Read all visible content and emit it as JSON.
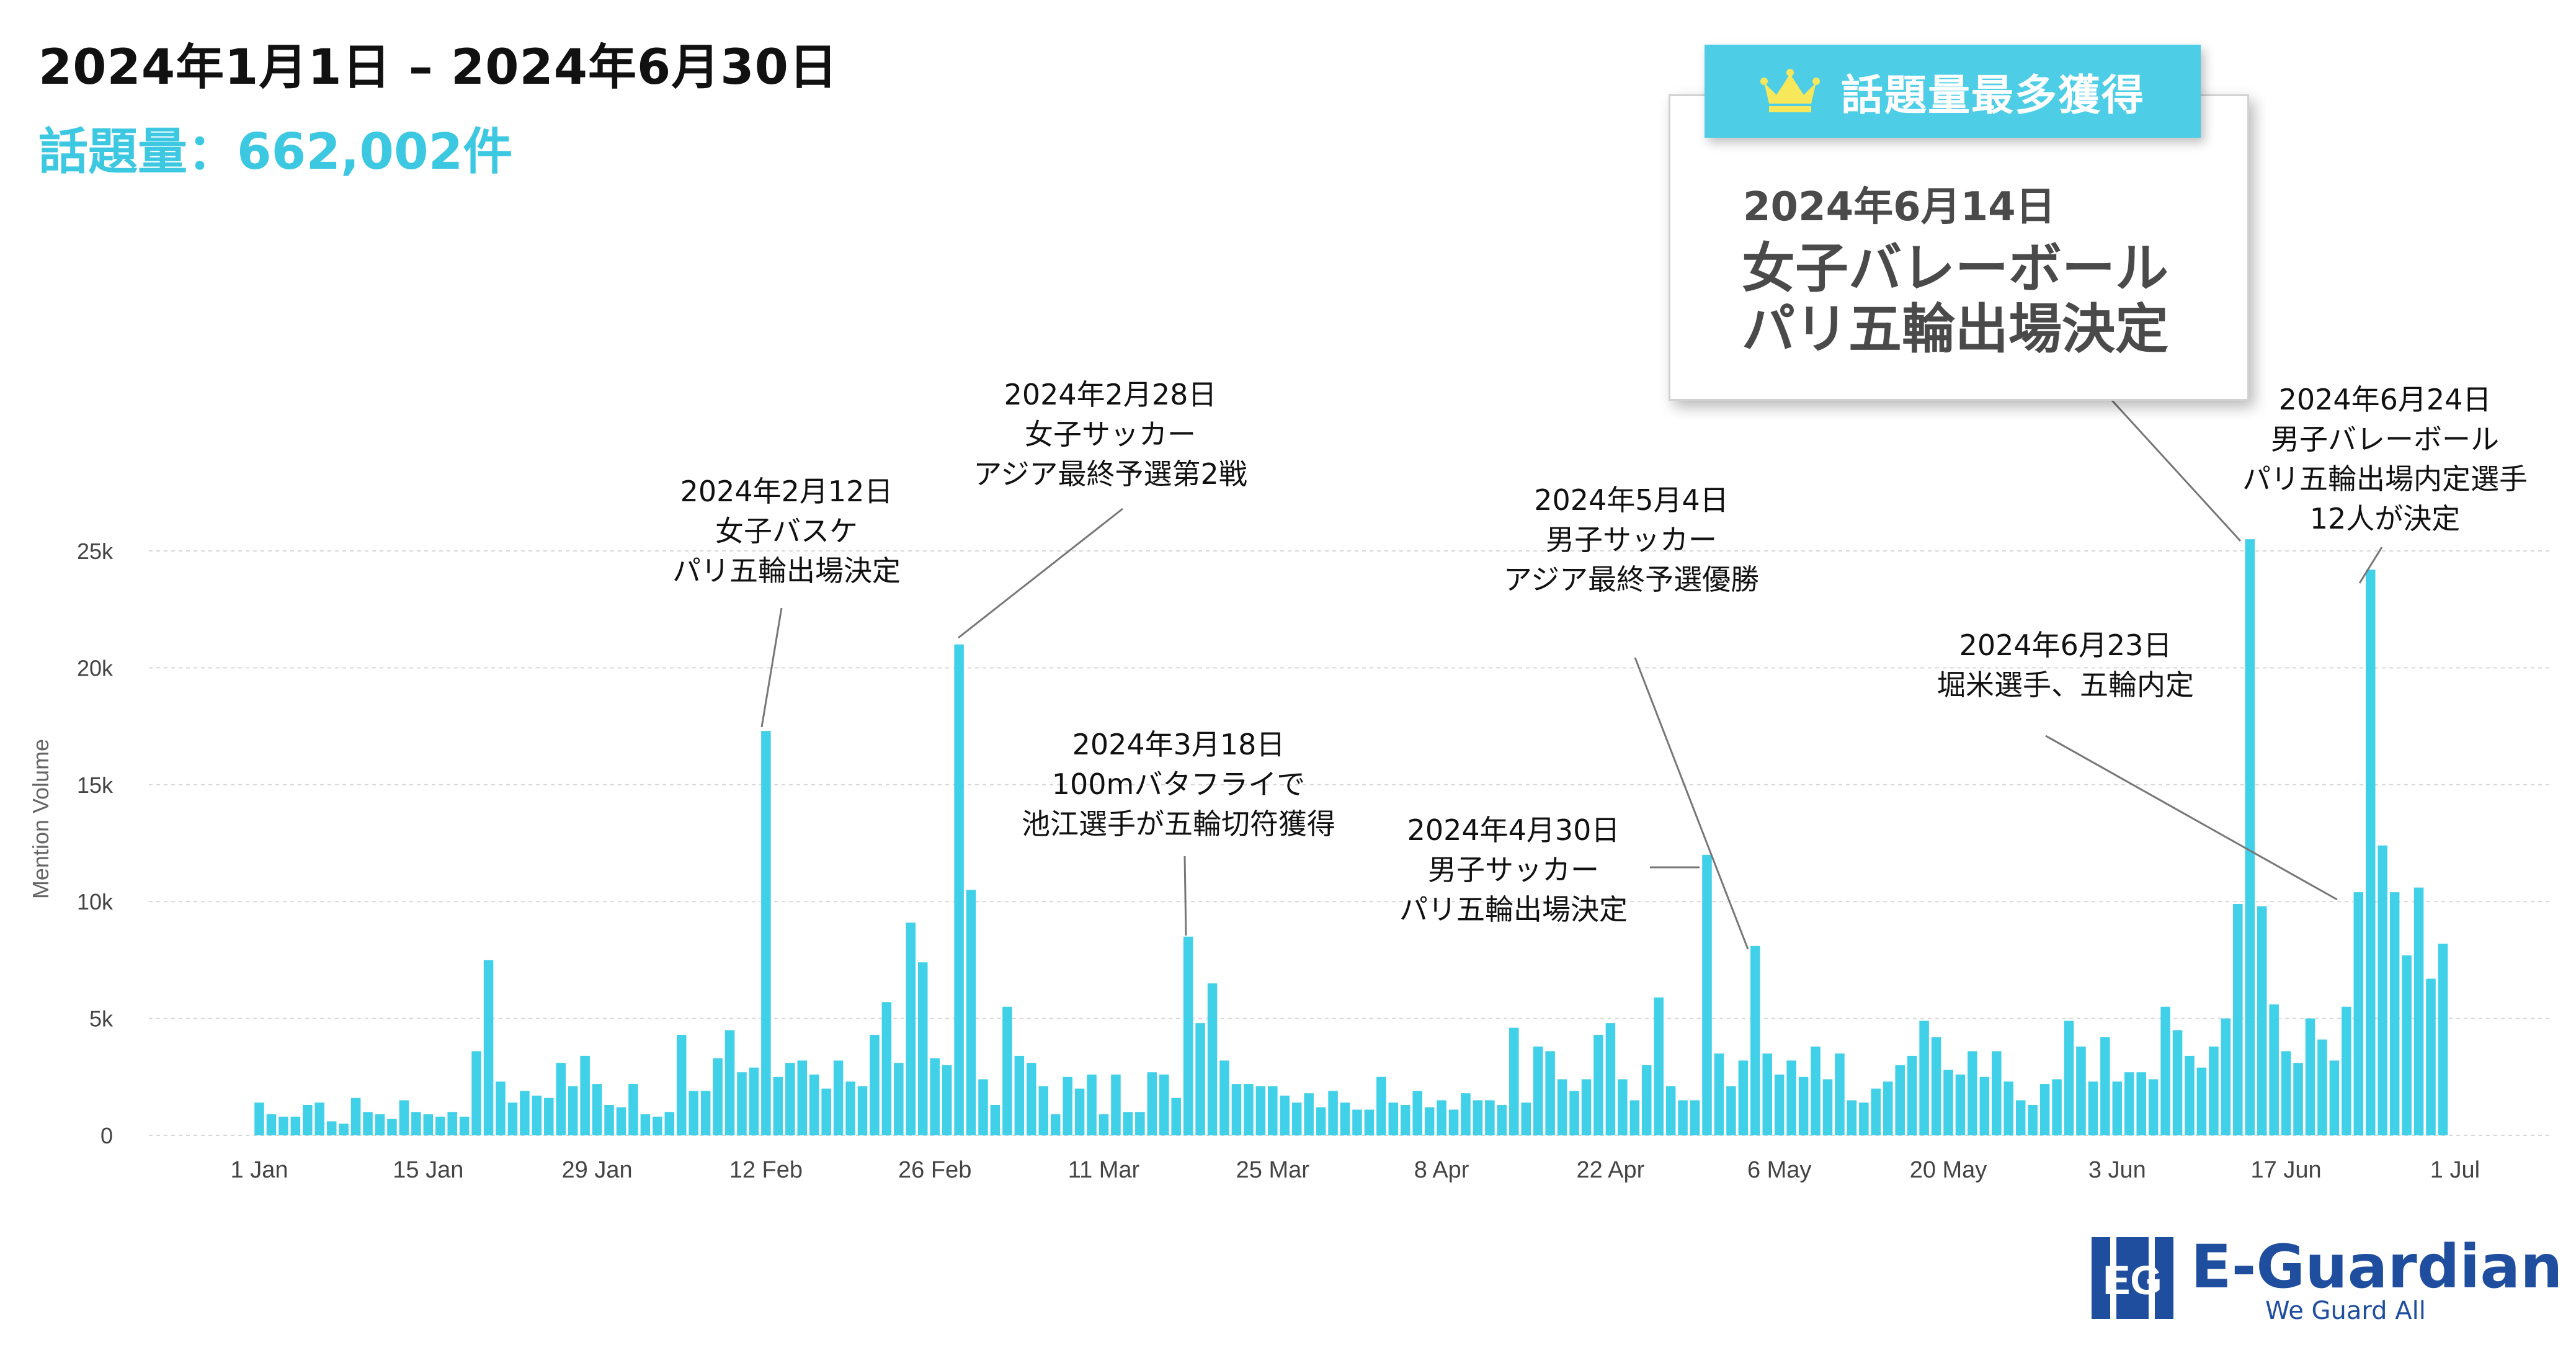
{
  "header": {
    "title": "2024年1月1日 – 2024年6月30日",
    "total_label": "話題量：",
    "total_value": "662,002件"
  },
  "top_card": {
    "badge": "話題量最多獲得",
    "icon": "crown-icon",
    "date": "2024年6月14日",
    "line1": "女子バレーボール",
    "line2": "パリ五輪出場決定"
  },
  "colors": {
    "bar": "#40d0e8",
    "accent": "#3dc8e2",
    "brand": "#1f4e9e"
  },
  "logo": {
    "mark": "EG",
    "name": "E-Guardian",
    "tagline": "We Guard All"
  },
  "chart_data": {
    "type": "bar",
    "ylabel": "Mention Volume",
    "ylim": [
      0,
      27500
    ],
    "yticks": [
      0,
      5000,
      10000,
      15000,
      20000,
      25000
    ],
    "ytick_labels": [
      "0",
      "5k",
      "10k",
      "15k",
      "20k",
      "25k"
    ],
    "grid": true,
    "xtick_labels": [
      {
        "day": 1,
        "label": "1 Jan"
      },
      {
        "day": 15,
        "label": "15 Jan"
      },
      {
        "day": 29,
        "label": "29 Jan"
      },
      {
        "day": 43,
        "label": "12 Feb"
      },
      {
        "day": 57,
        "label": "26 Feb"
      },
      {
        "day": 71,
        "label": "11 Mar"
      },
      {
        "day": 85,
        "label": "25 Mar"
      },
      {
        "day": 99,
        "label": "8 Apr"
      },
      {
        "day": 113,
        "label": "22 Apr"
      },
      {
        "day": 127,
        "label": "6 May"
      },
      {
        "day": 141,
        "label": "20 May"
      },
      {
        "day": 155,
        "label": "3 Jun"
      },
      {
        "day": 169,
        "label": "17 Jun"
      },
      {
        "day": 183,
        "label": "1 Jul"
      }
    ],
    "start_date": "2024-01-01",
    "values": [
      1400,
      900,
      800,
      800,
      1300,
      1400,
      600,
      500,
      1600,
      1000,
      900,
      700,
      1500,
      1000,
      900,
      800,
      1000,
      800,
      3600,
      7500,
      2300,
      1400,
      1900,
      1700,
      1600,
      3100,
      2100,
      3400,
      2200,
      1300,
      1200,
      2200,
      900,
      800,
      1000,
      4300,
      1900,
      1900,
      3300,
      4500,
      2700,
      2900,
      17300,
      2500,
      3100,
      3200,
      2600,
      2000,
      3200,
      2300,
      2100,
      4300,
      5700,
      3100,
      9100,
      7400,
      3300,
      3000,
      21000,
      10500,
      2400,
      1300,
      5500,
      3400,
      3100,
      2100,
      900,
      2500,
      2000,
      2600,
      900,
      2600,
      1000,
      1000,
      2700,
      2600,
      1600,
      8500,
      4800,
      6500,
      3200,
      2200,
      2200,
      2100,
      2100,
      1700,
      1400,
      1800,
      1200,
      1900,
      1400,
      1100,
      1100,
      2500,
      1400,
      1300,
      1900,
      1200,
      1500,
      1100,
      1800,
      1500,
      1500,
      1300,
      4600,
      1400,
      3800,
      3600,
      2400,
      1900,
      2400,
      4300,
      4800,
      2400,
      1500,
      3000,
      5900,
      2100,
      1500,
      1500,
      12000,
      3500,
      2100,
      3200,
      8100,
      3500,
      2600,
      3200,
      2500,
      3800,
      2400,
      3500,
      1500,
      1400,
      2000,
      2300,
      3000,
      3400,
      4900,
      4200,
      2800,
      2600,
      3600,
      2500,
      3600,
      2300,
      1500,
      1300,
      2200,
      2400,
      4900,
      3800,
      2300,
      4200,
      2300,
      2700,
      2700,
      2400,
      5500,
      4500,
      3400,
      2900,
      3800,
      5000,
      9900,
      25500,
      9800,
      5600,
      3600,
      3100,
      5000,
      4100,
      3200,
      5500,
      10400,
      24200,
      12400,
      10400,
      7700,
      10600,
      6700,
      8200
    ],
    "annotations": [
      {
        "day": 43,
        "lines": [
          "2024年2月12日",
          "女子バスケ",
          "パリ五輪出場決定"
        ]
      },
      {
        "day": 59,
        "lines": [
          "2024年2月28日",
          "女子サッカー",
          "アジア最終予選第2戦"
        ]
      },
      {
        "day": 78,
        "lines": [
          "2024年3月18日",
          "100mバタフライで",
          "池江選手が五輪切符獲得"
        ]
      },
      {
        "day": 121,
        "lines": [
          "2024年4月30日",
          "男子サッカー",
          "パリ五輪出場決定"
        ]
      },
      {
        "day": 125,
        "lines": [
          "2024年5月4日",
          "男子サッカー",
          "アジア最終予選優勝"
        ]
      },
      {
        "day": 174,
        "lines": [
          "2024年6月23日",
          "堀米選手、五輪内定"
        ]
      },
      {
        "day": 176,
        "lines": [
          "2024年6月24日",
          "男子バレーボール",
          "パリ五輪出場内定選手",
          "12人が決定"
        ]
      }
    ]
  }
}
